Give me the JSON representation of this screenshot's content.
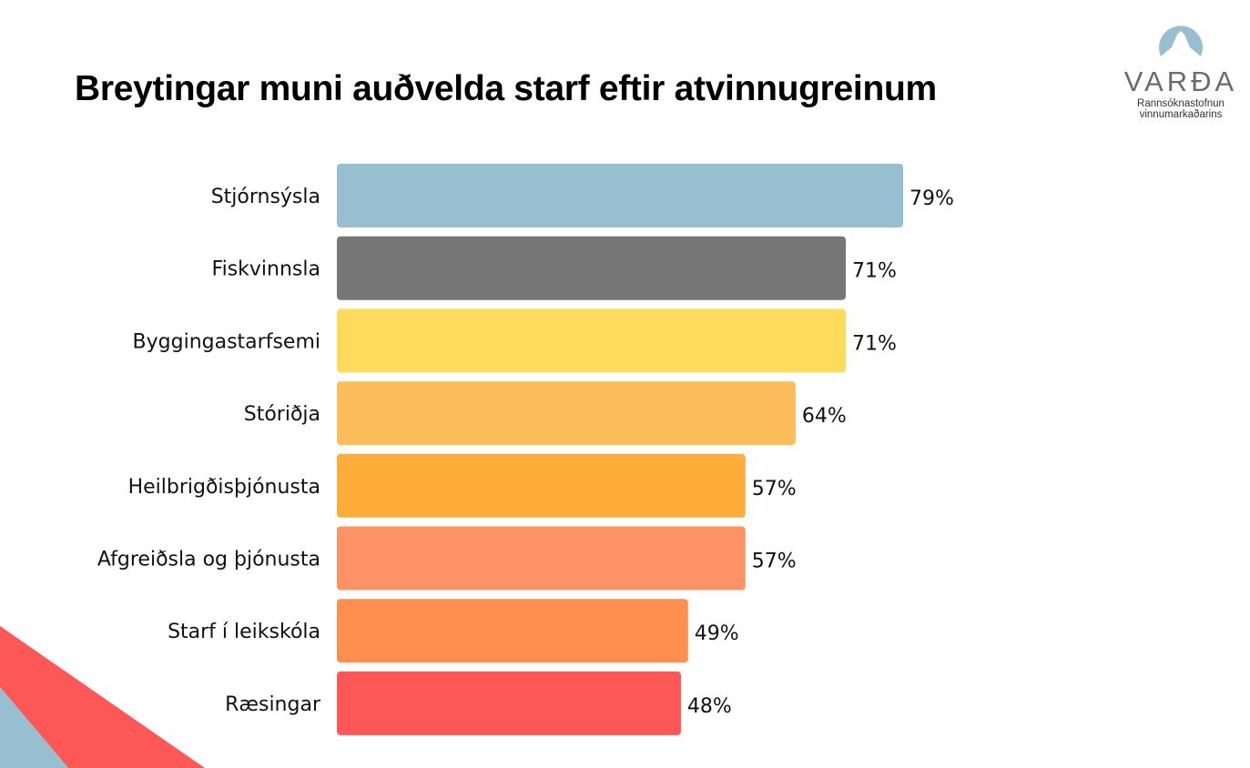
{
  "logo": {
    "name": "VARÐA",
    "subtitle_line1": "Rannsóknastofnun",
    "subtitle_line2": "vinnumarkaðarins"
  },
  "chart_data": {
    "type": "bar",
    "orientation": "horizontal",
    "title": "Breytingar muni auðvelda starf eftir atvinnugreinum",
    "xlabel": "",
    "ylabel": "",
    "xlim": [
      0,
      100
    ],
    "grid": false,
    "categories": [
      "Stjórnsýsla",
      "Fiskvinnsla",
      "Byggingastarfsemi",
      "Stóriðja",
      "Heilbrigðisþjónusta",
      "Afgreiðsla og þjónusta",
      "Starf í leikskóla",
      "Ræsingar"
    ],
    "values": [
      79,
      71,
      71,
      64,
      57,
      57,
      49,
      48
    ],
    "labels": [
      "79%",
      "71%",
      "71%",
      "64%",
      "57%",
      "57%",
      "49%",
      "48%"
    ],
    "colors": [
      "#97bfd0",
      "#777777",
      "#fedb5b",
      "#fdbd5a",
      "#feac3a",
      "#fe9267",
      "#fe8f50",
      "#fe5757"
    ]
  }
}
